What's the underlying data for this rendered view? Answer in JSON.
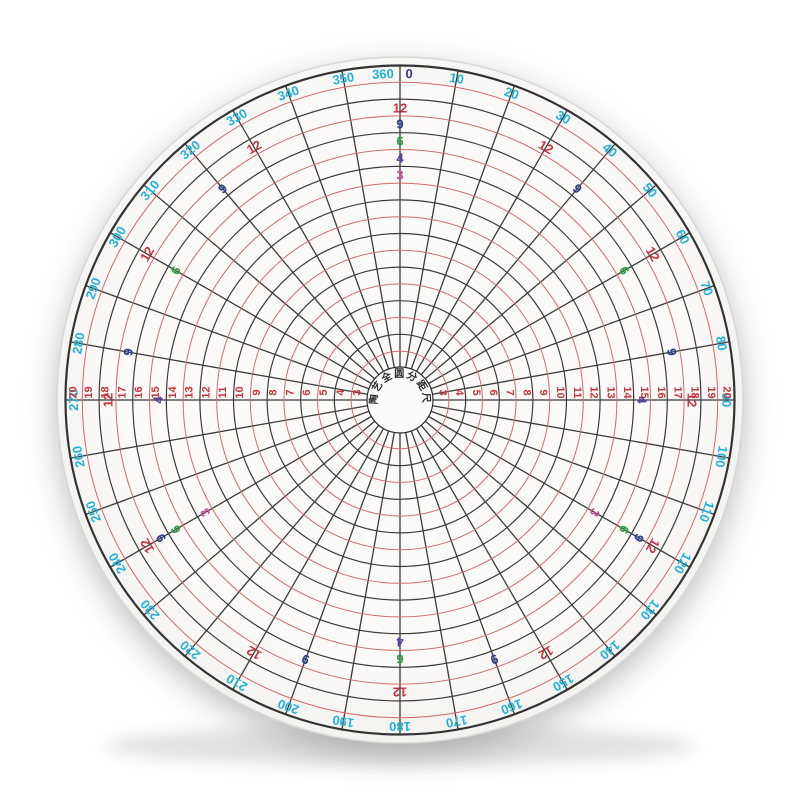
{
  "photo": {
    "background_color": "#ffffff",
    "disc_color_center": "#fbfaf8",
    "disc_color_edge": "#f2f1ee",
    "disc_edge_stroke": "#d8d8d8",
    "shadow_color": "#5a5a5a"
  },
  "ruler": {
    "center_label": "陶艺全圆分距尺",
    "degree_scale": {
      "unit_step": 10,
      "labels": [
        "0",
        "10",
        "20",
        "30",
        "40",
        "50",
        "60",
        "70",
        "80",
        "90",
        "100",
        "110",
        "120",
        "130",
        "140",
        "150",
        "160",
        "170",
        "180",
        "190",
        "200",
        "210",
        "220",
        "230",
        "240",
        "250",
        "260",
        "270",
        "280",
        "290",
        "300",
        "310",
        "320",
        "330",
        "340",
        "350",
        "360"
      ],
      "color": "#25b2d9",
      "zero_color": "#35378d"
    },
    "ring_scale": {
      "numbers": [
        "3",
        "4",
        "5",
        "6",
        "7",
        "8",
        "9",
        "10",
        "11",
        "12",
        "13",
        "14",
        "15",
        "16",
        "17",
        "18",
        "19",
        "20"
      ],
      "label_color": "#c9353f",
      "odd_ring_color": "#d26b6b",
      "even_ring_color": "#3b3b3b",
      "sides": [
        "left",
        "right"
      ]
    },
    "division_sets": [
      {
        "count": "12",
        "angle_step": 30,
        "color": "#c9353f"
      },
      {
        "count": "9",
        "angle_step": 40,
        "color": "#2c3e8f"
      },
      {
        "count": "6",
        "angle_step": 60,
        "color": "#2f9e44"
      },
      {
        "count": "4",
        "angle_step": 90,
        "color": "#5b3da1"
      },
      {
        "count": "3",
        "angle_step": 120,
        "color": "#cb4f9d"
      }
    ],
    "spoke_step_deg": 10,
    "spoke_color": "#3b3b3b"
  }
}
